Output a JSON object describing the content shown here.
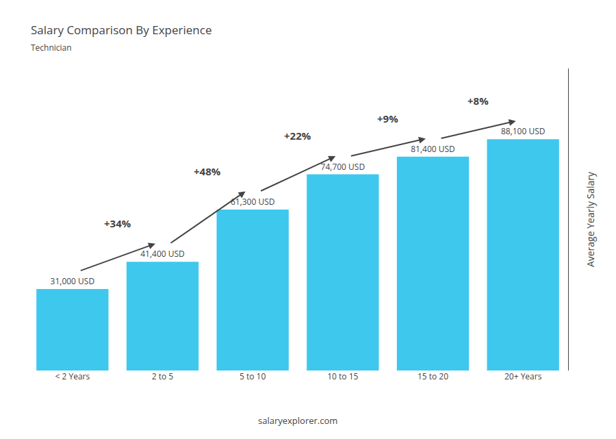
{
  "chart_data": {
    "type": "bar",
    "title": "Salary Comparison By Experience",
    "subtitle": "Technician",
    "categories": [
      "< 2 Years",
      "2 to 5",
      "5 to 10",
      "10 to 15",
      "15 to 20",
      "20+ Years"
    ],
    "values": [
      31000,
      41400,
      61300,
      74700,
      81400,
      88100
    ],
    "value_labels": [
      "31,000 USD",
      "41,400 USD",
      "61,300 USD",
      "74,700 USD",
      "81,400 USD",
      "88,100 USD"
    ],
    "data_labels": true,
    "color": "#3ec8ee",
    "ylabel": "Average Yearly Salary",
    "ylim": [
      0,
      115000
    ],
    "grid": false,
    "tick_labels": "x",
    "annotations": [
      "+34%",
      "+48%",
      "+22%",
      "+9%",
      "+8%"
    ],
    "footer": "salaryexplorer.com"
  }
}
